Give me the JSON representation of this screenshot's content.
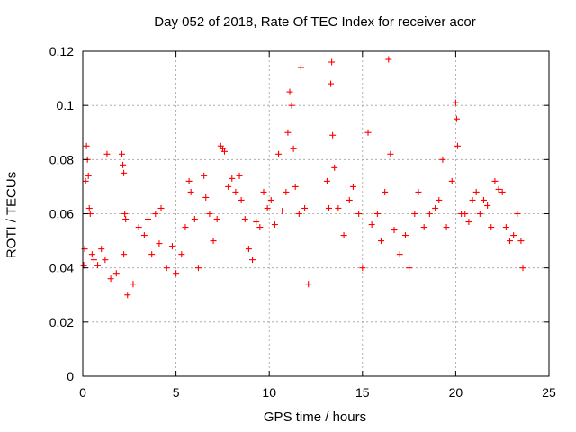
{
  "chart_data": {
    "type": "scatter",
    "title": "Day 052 of 2018, Rate Of TEC Index for receiver acor",
    "xlabel": "GPS time / hours",
    "ylabel": "ROTI / TECUs",
    "xlim": [
      0,
      25
    ],
    "ylim": [
      0,
      0.12
    ],
    "xticks": [
      "0",
      "5",
      "10",
      "15",
      "20",
      "25"
    ],
    "yticks": [
      "0",
      "0.02",
      "0.04",
      "0.06",
      "0.08",
      "0.1",
      "0.12"
    ],
    "grid": true,
    "marker": "+",
    "color": "#ff0000",
    "series": [
      {
        "points": [
          [
            0.05,
            0.041
          ],
          [
            0.1,
            0.047
          ],
          [
            0.15,
            0.072
          ],
          [
            0.2,
            0.085
          ],
          [
            0.25,
            0.08
          ],
          [
            0.3,
            0.074
          ],
          [
            0.35,
            0.062
          ],
          [
            0.4,
            0.06
          ],
          [
            0.5,
            0.045
          ],
          [
            0.6,
            0.043
          ],
          [
            0.8,
            0.041
          ],
          [
            1.0,
            0.047
          ],
          [
            1.2,
            0.043
          ],
          [
            1.3,
            0.082
          ],
          [
            1.5,
            0.036
          ],
          [
            1.8,
            0.038
          ],
          [
            2.1,
            0.082
          ],
          [
            2.15,
            0.078
          ],
          [
            2.2,
            0.075
          ],
          [
            2.25,
            0.06
          ],
          [
            2.3,
            0.058
          ],
          [
            2.2,
            0.045
          ],
          [
            2.4,
            0.03
          ],
          [
            2.7,
            0.034
          ],
          [
            3.0,
            0.055
          ],
          [
            3.3,
            0.052
          ],
          [
            3.5,
            0.058
          ],
          [
            3.7,
            0.045
          ],
          [
            3.9,
            0.06
          ],
          [
            4.1,
            0.049
          ],
          [
            4.2,
            0.062
          ],
          [
            4.5,
            0.04
          ],
          [
            4.8,
            0.048
          ],
          [
            5.0,
            0.038
          ],
          [
            5.3,
            0.045
          ],
          [
            5.5,
            0.055
          ],
          [
            5.7,
            0.072
          ],
          [
            5.8,
            0.068
          ],
          [
            6.0,
            0.058
          ],
          [
            6.2,
            0.04
          ],
          [
            6.5,
            0.074
          ],
          [
            6.6,
            0.066
          ],
          [
            6.8,
            0.06
          ],
          [
            7.0,
            0.05
          ],
          [
            7.2,
            0.058
          ],
          [
            7.4,
            0.085
          ],
          [
            7.5,
            0.084
          ],
          [
            7.6,
            0.083
          ],
          [
            7.8,
            0.07
          ],
          [
            8.0,
            0.073
          ],
          [
            8.2,
            0.068
          ],
          [
            8.4,
            0.074
          ],
          [
            8.5,
            0.065
          ],
          [
            8.7,
            0.058
          ],
          [
            8.9,
            0.047
          ],
          [
            9.1,
            0.043
          ],
          [
            9.3,
            0.057
          ],
          [
            9.5,
            0.055
          ],
          [
            9.7,
            0.068
          ],
          [
            9.9,
            0.062
          ],
          [
            10.1,
            0.065
          ],
          [
            10.3,
            0.056
          ],
          [
            10.5,
            0.082
          ],
          [
            10.7,
            0.061
          ],
          [
            10.9,
            0.068
          ],
          [
            11.0,
            0.09
          ],
          [
            11.1,
            0.105
          ],
          [
            11.2,
            0.1
          ],
          [
            11.3,
            0.084
          ],
          [
            11.4,
            0.07
          ],
          [
            11.6,
            0.06
          ],
          [
            11.7,
            0.114
          ],
          [
            11.9,
            0.062
          ],
          [
            12.1,
            0.034
          ],
          [
            13.1,
            0.072
          ],
          [
            13.2,
            0.062
          ],
          [
            13.3,
            0.108
          ],
          [
            13.35,
            0.116
          ],
          [
            13.4,
            0.089
          ],
          [
            13.5,
            0.077
          ],
          [
            13.7,
            0.062
          ],
          [
            14.0,
            0.052
          ],
          [
            14.3,
            0.065
          ],
          [
            14.5,
            0.07
          ],
          [
            14.8,
            0.06
          ],
          [
            15.0,
            0.04
          ],
          [
            15.3,
            0.09
          ],
          [
            15.5,
            0.056
          ],
          [
            15.8,
            0.06
          ],
          [
            16.0,
            0.05
          ],
          [
            16.2,
            0.068
          ],
          [
            16.4,
            0.117
          ],
          [
            16.5,
            0.082
          ],
          [
            16.7,
            0.054
          ],
          [
            17.0,
            0.045
          ],
          [
            17.3,
            0.052
          ],
          [
            17.5,
            0.04
          ],
          [
            17.8,
            0.06
          ],
          [
            18.0,
            0.068
          ],
          [
            18.3,
            0.055
          ],
          [
            18.6,
            0.06
          ],
          [
            18.9,
            0.062
          ],
          [
            19.1,
            0.065
          ],
          [
            19.3,
            0.08
          ],
          [
            19.5,
            0.055
          ],
          [
            19.8,
            0.072
          ],
          [
            20.0,
            0.101
          ],
          [
            20.05,
            0.095
          ],
          [
            20.1,
            0.085
          ],
          [
            20.3,
            0.06
          ],
          [
            20.5,
            0.06
          ],
          [
            20.7,
            0.057
          ],
          [
            20.9,
            0.065
          ],
          [
            21.1,
            0.068
          ],
          [
            21.3,
            0.06
          ],
          [
            21.5,
            0.065
          ],
          [
            21.7,
            0.063
          ],
          [
            21.9,
            0.055
          ],
          [
            22.1,
            0.072
          ],
          [
            22.3,
            0.069
          ],
          [
            22.5,
            0.068
          ],
          [
            22.7,
            0.055
          ],
          [
            22.9,
            0.05
          ],
          [
            23.1,
            0.052
          ],
          [
            23.3,
            0.06
          ],
          [
            23.5,
            0.05
          ],
          [
            23.6,
            0.04
          ]
        ]
      }
    ]
  }
}
